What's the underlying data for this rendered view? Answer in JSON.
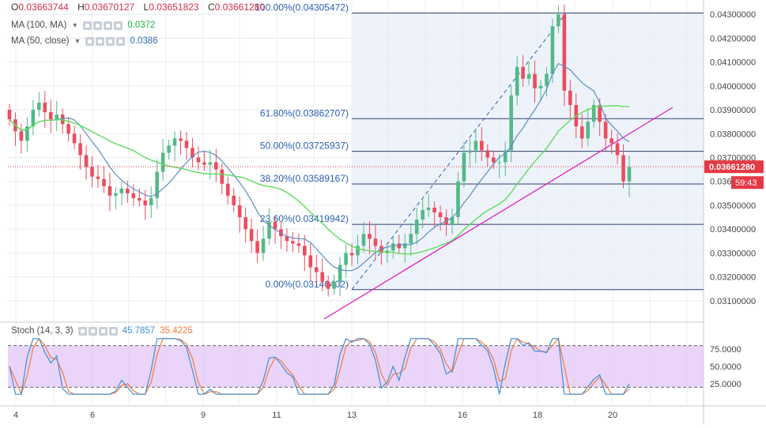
{
  "header": {
    "ohlc": [
      {
        "label": "O",
        "value": "0.03663744"
      },
      {
        "label": "H",
        "value": "0.03670127"
      },
      {
        "label": "L",
        "value": "0.03651823"
      },
      {
        "label": "C",
        "value": "0.03661280"
      }
    ],
    "indicators": [
      {
        "label": "MA (100, MA)",
        "value": "0.0372",
        "color": "#1db53a"
      },
      {
        "label": "MA (50, close)",
        "value": "0.0386",
        "color": "#2d6eb5"
      }
    ]
  },
  "colors": {
    "up": "#53b987",
    "down": "#eb4d5c",
    "grid": "#e8ecf0",
    "fib": "#2e3f6b",
    "fib_text": "#2a5fb0",
    "pink": "#e01fc3",
    "ma100": "#5fdc5a",
    "ma50": "#5b8fc2",
    "price_badge": "#e53945",
    "stoch_k": "#3e8ed6",
    "stoch_d": "#f37b3a",
    "stoch_band": "#e3c6f7"
  },
  "chart_data": {
    "type": "candlestick",
    "price_axis": {
      "ticks": [
        "0.04300000",
        "0.04200000",
        "0.04100000",
        "0.04000000",
        "0.03900000",
        "0.03800000",
        "0.03700000",
        "0.036",
        "0.03500000",
        "0.03400000",
        "0.03300000",
        "0.03200000",
        "0.03100000"
      ],
      "ylim": [
        0.0302,
        0.0436
      ]
    },
    "x_axis": {
      "ticks": [
        "4",
        "6",
        "9",
        "11",
        "13",
        "16",
        "18",
        "20"
      ]
    },
    "fib_levels": [
      {
        "label": "100.00%(0.04305472)",
        "price": 0.04305472
      },
      {
        "label": "61.80%(0.03862707)",
        "price": 0.03862707
      },
      {
        "label": "50.00%(0.03725937)",
        "price": 0.03725937
      },
      {
        "label": "38.20%(0.03589167)",
        "price": 0.03589167
      },
      {
        "label": "23.60%(0.03419942)",
        "price": 0.03419942
      },
      {
        "label": "0.00%(0.03146402)",
        "price": 0.03146402
      }
    ],
    "current_price": {
      "label": "0.03661280",
      "value": 0.0366128
    },
    "countdown": "59:43",
    "stoch": {
      "label": "Stoch (14, 3, 3)",
      "k": "45.7857",
      "d": "35.4225",
      "levels": [
        "75.0000",
        "50.0000",
        "25.0000"
      ],
      "upper": 80,
      "lower": 20
    },
    "closes": [
      0.0386,
      0.0381,
      0.0377,
      0.0383,
      0.039,
      0.0393,
      0.0389,
      0.0386,
      0.0388,
      0.0384,
      0.038,
      0.0376,
      0.0371,
      0.0366,
      0.0362,
      0.0361,
      0.0358,
      0.0354,
      0.0355,
      0.0357,
      0.0355,
      0.0353,
      0.0352,
      0.035,
      0.0353,
      0.0364,
      0.0372,
      0.0375,
      0.0378,
      0.0377,
      0.0374,
      0.037,
      0.0368,
      0.0367,
      0.0368,
      0.0365,
      0.0359,
      0.0354,
      0.035,
      0.0345,
      0.034,
      0.0335,
      0.033,
      0.0336,
      0.0343,
      0.034,
      0.0337,
      0.0335,
      0.0334,
      0.0333,
      0.0329,
      0.0324,
      0.0322,
      0.0318,
      0.0315,
      0.0318,
      0.0325,
      0.033,
      0.0329,
      0.0333,
      0.0338,
      0.0336,
      0.0333,
      0.033,
      0.0331,
      0.0334,
      0.0332,
      0.0334,
      0.0338,
      0.0344,
      0.0348,
      0.0349,
      0.0347,
      0.0345,
      0.0342,
      0.0345,
      0.036,
      0.0372,
      0.0373,
      0.0377,
      0.0373,
      0.037,
      0.0368,
      0.0368,
      0.0373,
      0.0396,
      0.0408,
      0.0403,
      0.0405,
      0.0399,
      0.04,
      0.0405,
      0.0425,
      0.043,
      0.0398,
      0.0392,
      0.0383,
      0.0378,
      0.0385,
      0.0392,
      0.0385,
      0.0378,
      0.0376,
      0.0371,
      0.036,
      0.0366
    ]
  }
}
